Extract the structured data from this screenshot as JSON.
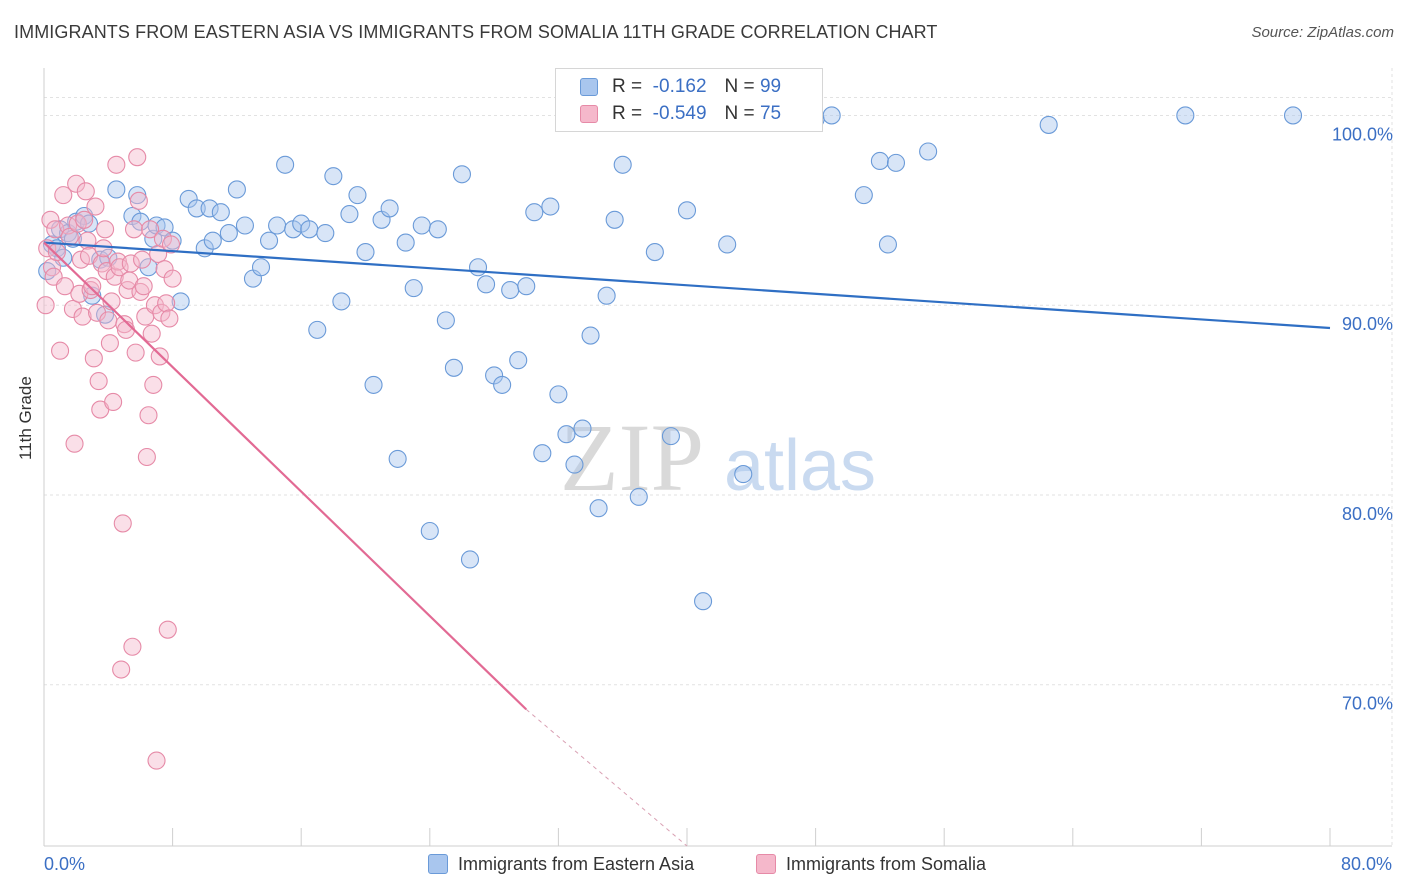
{
  "header": {
    "title": "IMMIGRANTS FROM EASTERN ASIA VS IMMIGRANTS FROM SOMALIA 11TH GRADE CORRELATION CHART",
    "source": "Source: ZipAtlas.com"
  },
  "watermark": {
    "zip": "ZIP",
    "atlas": "atlas"
  },
  "legend": {
    "rows": [
      {
        "r_label": "R =",
        "r_value": "-0.162",
        "n_label": "N =",
        "n_value": "99",
        "color": "#a9c6ee"
      },
      {
        "r_label": "R =",
        "r_value": "-0.549",
        "n_label": "N =",
        "n_value": "75",
        "color": "#f5b8cb"
      }
    ]
  },
  "colors": {
    "blue_fill": "#a9c6ee",
    "blue_stroke": "#6a9ad8",
    "blue_line": "#2f6fc4",
    "pink_fill": "#f5b8cb",
    "pink_stroke": "#e68aa7",
    "pink_line": "#e26a94",
    "grid": "#e2e2e2",
    "tick_label": "#3b6fc4"
  },
  "chart_data": {
    "type": "scatter",
    "xlabel": "",
    "ylabel": "11th Grade",
    "xlim": [
      0,
      80
    ],
    "ylim": [
      61.5,
      102.5
    ],
    "x_tick_labels": [
      "0.0%",
      "80.0%"
    ],
    "y_ticks": [
      70,
      80,
      90,
      100
    ],
    "y_tick_labels": [
      "70.0%",
      "80.0%",
      "90.0%",
      "100.0%"
    ],
    "grid": true,
    "legend_position": "top-center",
    "series": [
      {
        "name": "Immigrants from Eastern Asia",
        "trend": {
          "x": [
            0,
            80
          ],
          "y": [
            93.3,
            88.8
          ]
        },
        "x": [
          0.2,
          0.5,
          0.8,
          1.0,
          1.2,
          1.5,
          1.8,
          2.0,
          2.5,
          2.8,
          3.0,
          3.5,
          3.8,
          4.0,
          4.5,
          5.5,
          5.8,
          6.0,
          6.5,
          6.8,
          7.0,
          7.5,
          8.0,
          8.5,
          9.0,
          9.5,
          10.0,
          10.3,
          10.5,
          11.0,
          11.5,
          12.0,
          12.5,
          13.0,
          13.5,
          14.0,
          14.5,
          15.0,
          15.5,
          16.0,
          16.5,
          17.0,
          17.5,
          18.0,
          18.5,
          19.0,
          19.5,
          20.0,
          20.5,
          21.0,
          21.5,
          22.0,
          22.5,
          23.0,
          23.5,
          24.0,
          24.5,
          25.0,
          25.5,
          26.0,
          26.5,
          27.0,
          27.5,
          28.0,
          28.5,
          29.0,
          29.5,
          30.0,
          30.5,
          31.0,
          31.5,
          32.0,
          32.5,
          33.0,
          33.5,
          34.0,
          34.5,
          35.0,
          35.5,
          36.0,
          37.0,
          38.0,
          39.0,
          40.0,
          41.0,
          42.5,
          43.5,
          44.5,
          46.0,
          48.0,
          49.0,
          51.0,
          52.0,
          52.5,
          53.0,
          55.0,
          62.5,
          71.0,
          77.7
        ],
        "y": [
          91.8,
          93.2,
          93.0,
          94.0,
          92.5,
          93.8,
          93.5,
          94.4,
          94.7,
          94.3,
          90.5,
          92.4,
          89.5,
          92.5,
          96.1,
          94.7,
          95.8,
          94.4,
          92.0,
          93.5,
          94.2,
          94.1,
          93.4,
          90.2,
          95.6,
          95.1,
          93.0,
          95.1,
          93.4,
          94.9,
          93.8,
          96.1,
          94.2,
          91.4,
          92.0,
          93.4,
          94.2,
          97.4,
          94.0,
          94.3,
          94.0,
          88.7,
          93.8,
          96.8,
          90.2,
          94.8,
          95.8,
          92.8,
          85.8,
          94.5,
          95.1,
          81.9,
          93.3,
          90.9,
          94.2,
          78.1,
          94.0,
          89.2,
          86.7,
          96.9,
          76.6,
          92.0,
          91.1,
          86.3,
          85.8,
          90.8,
          87.1,
          91.0,
          94.9,
          82.2,
          95.2,
          85.3,
          83.2,
          81.6,
          83.5,
          88.4,
          79.3,
          90.5,
          94.5,
          97.4,
          79.9,
          92.8,
          83.1,
          95.0,
          74.4,
          93.2,
          81.1,
          100.0,
          100.0,
          99.8,
          100.0,
          95.8,
          97.6,
          93.2,
          97.5,
          98.1,
          99.5,
          100.0,
          100.0
        ]
      },
      {
        "name": "Immigrants from Somalia",
        "trend": {
          "x": [
            0,
            30
          ],
          "y": [
            93.3,
            68.7
          ]
        },
        "trend_dashed": {
          "x": [
            30,
            40
          ],
          "y": [
            68.7,
            60.5
          ]
        },
        "x": [
          0.1,
          0.2,
          0.4,
          0.5,
          0.6,
          0.7,
          0.8,
          1.0,
          1.2,
          1.3,
          1.5,
          1.6,
          1.8,
          1.9,
          2.0,
          2.1,
          2.2,
          2.3,
          2.4,
          2.5,
          2.6,
          2.7,
          2.8,
          2.9,
          3.0,
          3.1,
          3.2,
          3.3,
          3.4,
          3.5,
          3.6,
          3.7,
          3.8,
          3.9,
          4.0,
          4.1,
          4.2,
          4.3,
          4.4,
          4.5,
          4.6,
          4.7,
          4.8,
          4.9,
          5.0,
          5.1,
          5.2,
          5.3,
          5.4,
          5.5,
          5.6,
          5.7,
          5.8,
          5.9,
          6.0,
          6.1,
          6.2,
          6.3,
          6.4,
          6.5,
          6.6,
          6.7,
          6.8,
          6.9,
          7.0,
          7.1,
          7.2,
          7.3,
          7.4,
          7.5,
          7.6,
          7.7,
          7.8,
          7.9,
          8.0
        ],
        "y": [
          90.0,
          93.0,
          94.5,
          92.0,
          91.5,
          94.0,
          92.8,
          87.6,
          95.8,
          91.0,
          94.2,
          93.6,
          89.8,
          82.7,
          96.4,
          94.3,
          90.6,
          92.4,
          89.4,
          94.5,
          96.0,
          93.4,
          92.6,
          90.8,
          91.0,
          87.2,
          95.2,
          89.6,
          86.0,
          84.5,
          92.2,
          93.0,
          94.0,
          91.8,
          89.2,
          88.0,
          90.2,
          84.9,
          91.5,
          97.4,
          92.3,
          92.0,
          70.8,
          78.5,
          89.0,
          88.7,
          90.8,
          91.3,
          92.2,
          72.0,
          94.0,
          87.5,
          97.8,
          95.5,
          90.7,
          92.4,
          91.0,
          89.4,
          82.0,
          84.2,
          94.0,
          88.5,
          85.8,
          90.0,
          66.0,
          92.7,
          87.3,
          89.6,
          93.5,
          91.9,
          90.1,
          72.9,
          89.3,
          93.2,
          91.4
        ]
      }
    ]
  }
}
